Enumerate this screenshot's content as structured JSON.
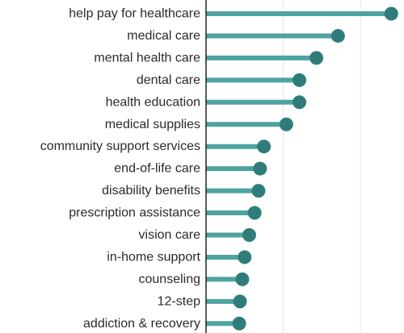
{
  "chart_data": {
    "type": "lollipop",
    "orientation": "horizontal",
    "categories": [
      "help pay for healthcare",
      "medical care",
      "mental health care",
      "dental care",
      "health education",
      "medical supplies",
      "community support services",
      "end-of-life care",
      "disability benefits",
      "prescription assistance",
      "vision care",
      "in-home support",
      "counseling",
      "12-step",
      "addiction & recovery"
    ],
    "values": [
      240,
      171,
      143,
      121,
      121,
      104,
      75,
      70,
      68,
      63,
      56,
      50,
      47,
      44,
      43
    ],
    "xlim": [
      0,
      245
    ],
    "grid": "vertical",
    "colors": {
      "stem": "#4fa3a0",
      "dot": "#2f7d7a",
      "axis": "#222222",
      "grid": "#e6e6e6",
      "label": "#2b2b2b"
    }
  }
}
